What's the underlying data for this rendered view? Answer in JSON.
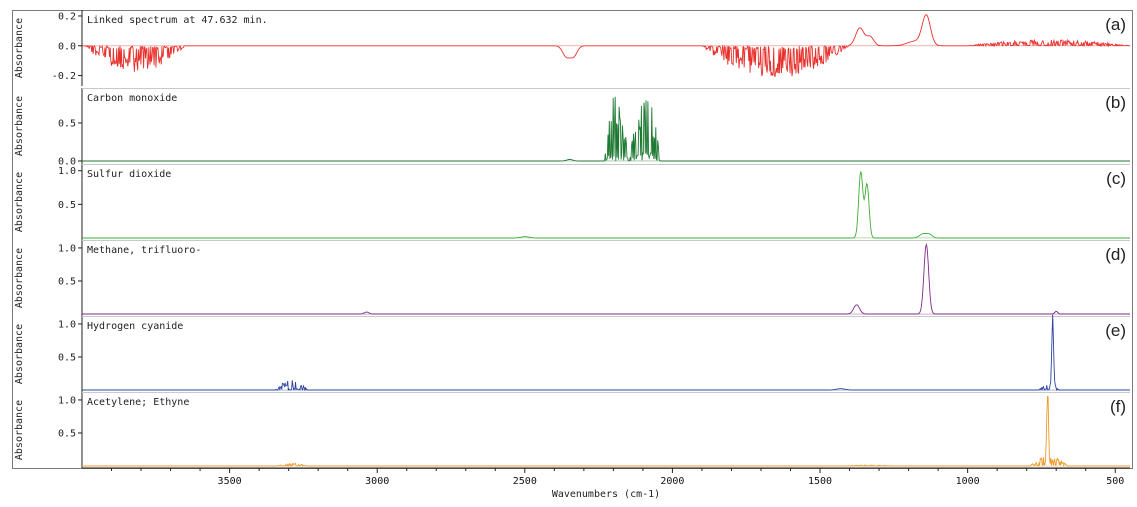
{
  "chart_data": {
    "type": "line",
    "x_axis": {
      "label": "Wavenumbers (cm-1)",
      "range": [
        4000,
        450
      ],
      "reversed": true,
      "ticks": [
        3500,
        3000,
        2500,
        2000,
        1500,
        1000,
        500
      ]
    },
    "panels": [
      {
        "letter": "(a)",
        "title": "Linked spectrum at 47.632 min.",
        "ylabel": "Absorbance",
        "color": "#e8312c",
        "ylim": [
          -0.27,
          0.24
        ],
        "yticks": [
          {
            "v": 0.2,
            "t": "0.2"
          },
          {
            "v": 0.0,
            "t": "0.0"
          },
          {
            "v": -0.2,
            "t": "-0.2"
          }
        ],
        "peaks": [
          {
            "x": 1140,
            "y": 0.2,
            "w": 14
          },
          {
            "x": 1365,
            "y": 0.12,
            "w": 14
          },
          {
            "x": 1330,
            "y": 0.06,
            "w": 12
          },
          {
            "x": 1180,
            "y": 0.03,
            "w": 25
          },
          {
            "x": 2360,
            "y": -0.07,
            "w": 12
          },
          {
            "x": 2335,
            "y": -0.07,
            "w": 12
          }
        ],
        "bands": [
          {
            "from": 3990,
            "to": 3650,
            "amp": -0.18,
            "sign": -1
          },
          {
            "from": 1900,
            "to": 1400,
            "amp": -0.22,
            "sign": -1
          },
          {
            "from": 1000,
            "to": 450,
            "amp": 0.04,
            "sign": 1
          }
        ]
      },
      {
        "letter": "(b)",
        "title": "Carbon monoxide",
        "ylabel": "Absorbance",
        "color": "#1e7a33",
        "ylim": [
          -0.04,
          0.96
        ],
        "yticks": [
          {
            "v": 0.5,
            "t": "0.5"
          },
          {
            "v": 0.0,
            "t": "0.0"
          }
        ],
        "peaks": [
          {
            "x": 2348,
            "y": 0.02,
            "w": 10
          }
        ],
        "bands": [
          {
            "from": 2230,
            "to": 2145,
            "amp": 0.92,
            "sign": 1
          },
          {
            "from": 2145,
            "to": 2040,
            "amp": 0.9,
            "sign": 1
          }
        ]
      },
      {
        "letter": "(c)",
        "title": "Sulfur dioxide",
        "ylabel": "Absorbance",
        "color": "#3fae35",
        "ylim": [
          -0.03,
          1.1
        ],
        "yticks": [
          {
            "v": 1.0,
            "t": "1.0"
          },
          {
            "v": 0.5,
            "t": "0.5"
          }
        ],
        "peaks": [
          {
            "x": 1362,
            "y": 0.98,
            "w": 7
          },
          {
            "x": 1341,
            "y": 0.8,
            "w": 7
          },
          {
            "x": 1151,
            "y": 0.06,
            "w": 12
          },
          {
            "x": 1129,
            "y": 0.05,
            "w": 10
          },
          {
            "x": 2499,
            "y": 0.02,
            "w": 14
          }
        ],
        "bands": []
      },
      {
        "letter": "(d)",
        "title": "Methane, trifluoro-",
        "ylabel": "Absorbance",
        "color": "#7d2a86",
        "ylim": [
          -0.03,
          1.12
        ],
        "yticks": [
          {
            "v": 1.0,
            "t": "1.0"
          },
          {
            "v": 0.5,
            "t": "0.5"
          }
        ],
        "peaks": [
          {
            "x": 1140,
            "y": 1.05,
            "w": 8
          },
          {
            "x": 1376,
            "y": 0.14,
            "w": 10
          },
          {
            "x": 3036,
            "y": 0.03,
            "w": 8
          },
          {
            "x": 700,
            "y": 0.04,
            "w": 5
          }
        ],
        "bands": []
      },
      {
        "letter": "(e)",
        "title": "Hydrogen cyanide",
        "ylabel": "Absorbance",
        "color": "#2d45a0",
        "ylim": [
          -0.03,
          1.12
        ],
        "yticks": [
          {
            "v": 1.0,
            "t": "1.0"
          },
          {
            "v": 0.5,
            "t": "0.5"
          }
        ],
        "peaks": [
          {
            "x": 712,
            "y": 1.06,
            "w": 3
          },
          {
            "x": 1430,
            "y": 0.02,
            "w": 15
          }
        ],
        "bands": [
          {
            "from": 3345,
            "to": 3235,
            "amp": 0.15,
            "sign": 1
          },
          {
            "from": 760,
            "to": 690,
            "amp": 0.12,
            "sign": 1
          }
        ]
      },
      {
        "letter": "(f)",
        "title": "Acetylene; Ethyne",
        "ylabel": "Absorbance",
        "color": "#ef9a2e",
        "ylim": [
          -0.03,
          1.12
        ],
        "yticks": [
          {
            "v": 1.0,
            "t": "1.0"
          },
          {
            "v": 0.5,
            "t": "0.5"
          }
        ],
        "peaks": [
          {
            "x": 729,
            "y": 1.06,
            "w": 3
          }
        ],
        "bands": [
          {
            "from": 3340,
            "to": 3240,
            "amp": 0.05,
            "sign": 1
          },
          {
            "from": 790,
            "to": 660,
            "amp": 0.15,
            "sign": 1
          },
          {
            "from": 1420,
            "to": 1240,
            "amp": 0.015,
            "sign": 1
          }
        ]
      }
    ]
  }
}
